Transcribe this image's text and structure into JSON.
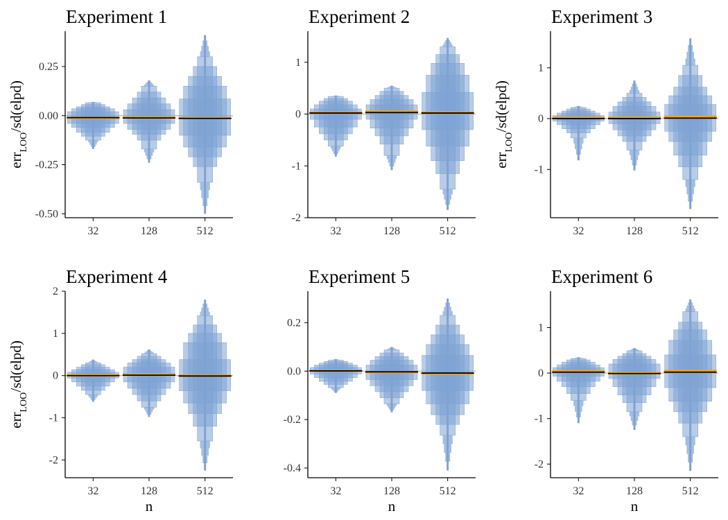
{
  "chart_data": [
    {
      "type": "letter-value plot",
      "title": "Experiment 1",
      "categories": [
        "32",
        "128",
        "512"
      ],
      "yticks": [
        "0.25",
        "0.00",
        "-0.25",
        "-0.50"
      ],
      "ytick_values": [
        0.25,
        0.0,
        -0.25,
        -0.5
      ],
      "ylim": [
        -0.52,
        0.43
      ],
      "ylabel": "err_LOO/sd(elpd)",
      "xlabel": "",
      "mean": [
        -0.012,
        -0.01,
        -0.012
      ],
      "median": [
        -0.01,
        -0.012,
        -0.014
      ],
      "min": [
        -0.17,
        -0.24,
        -0.5
      ],
      "max": [
        0.07,
        0.18,
        0.41
      ],
      "boxes": [
        [
          [
            -0.04,
            0.02
          ],
          [
            -0.06,
            0.035
          ],
          [
            -0.085,
            0.045
          ],
          [
            -0.105,
            0.057
          ],
          [
            -0.125,
            0.066
          ]
        ],
        [
          [
            -0.04,
            0.03
          ],
          [
            -0.07,
            0.06
          ],
          [
            -0.095,
            0.09
          ],
          [
            -0.125,
            0.12
          ],
          [
            -0.17,
            0.15
          ]
        ],
        [
          [
            -0.1,
            0.085
          ],
          [
            -0.16,
            0.15
          ],
          [
            -0.21,
            0.2
          ],
          [
            -0.26,
            0.25
          ],
          [
            -0.34,
            0.3
          ]
        ]
      ]
    },
    {
      "type": "letter-value plot",
      "title": "Experiment 2",
      "categories": [
        "32",
        "128",
        "512"
      ],
      "yticks": [
        "1",
        "0",
        "-1",
        "-2"
      ],
      "ytick_values": [
        1,
        0,
        -1,
        -2
      ],
      "ylim": [
        -2.0,
        1.6
      ],
      "ylabel": "",
      "xlabel": "",
      "mean": [
        0.03,
        0.05,
        0.03
      ],
      "median": [
        0.02,
        0.03,
        0.02
      ],
      "min": [
        -0.82,
        -1.08,
        -1.85
      ],
      "max": [
        0.36,
        0.55,
        1.47
      ],
      "boxes": [
        [
          [
            -0.1,
            0.1
          ],
          [
            -0.25,
            0.18
          ],
          [
            -0.38,
            0.25
          ],
          [
            -0.5,
            0.3
          ],
          [
            -0.62,
            0.34
          ]
        ],
        [
          [
            -0.1,
            0.18
          ],
          [
            -0.27,
            0.28
          ],
          [
            -0.42,
            0.36
          ],
          [
            -0.58,
            0.44
          ],
          [
            -0.8,
            0.5
          ]
        ],
        [
          [
            -0.3,
            0.42
          ],
          [
            -0.62,
            0.75
          ],
          [
            -0.9,
            0.98
          ],
          [
            -1.15,
            1.15
          ],
          [
            -1.45,
            1.3
          ]
        ]
      ]
    },
    {
      "type": "letter-value plot",
      "title": "Experiment 3",
      "categories": [
        "32",
        "128",
        "512"
      ],
      "yticks": [
        "1",
        "0",
        "-1"
      ],
      "ytick_values": [
        1,
        0,
        -1
      ],
      "ylim": [
        -1.95,
        1.72
      ],
      "ylabel": "err_LOO/sd(elpd)",
      "xlabel": "",
      "mean": [
        0.02,
        0.02,
        0.04
      ],
      "median": [
        0.0,
        0.0,
        0.01
      ],
      "min": [
        -0.82,
        -1.02,
        -1.78
      ],
      "max": [
        0.25,
        0.75,
        1.58
      ],
      "boxes": [
        [
          [
            -0.05,
            0.06
          ],
          [
            -0.12,
            0.11
          ],
          [
            -0.2,
            0.15
          ],
          [
            -0.28,
            0.19
          ],
          [
            -0.38,
            0.22
          ]
        ],
        [
          [
            -0.1,
            0.13
          ],
          [
            -0.22,
            0.24
          ],
          [
            -0.34,
            0.33
          ],
          [
            -0.45,
            0.42
          ],
          [
            -0.62,
            0.5
          ]
        ],
        [
          [
            -0.25,
            0.28
          ],
          [
            -0.45,
            0.45
          ],
          [
            -0.72,
            0.62
          ],
          [
            -0.95,
            0.85
          ],
          [
            -1.2,
            1.05
          ]
        ]
      ]
    },
    {
      "type": "letter-value plot",
      "title": "Experiment 4",
      "categories": [
        "32",
        "128",
        "512"
      ],
      "yticks": [
        "2",
        "1",
        "0",
        "-1",
        "-2"
      ],
      "ytick_values": [
        2,
        1,
        0,
        -1,
        -2
      ],
      "ylim": [
        -2.42,
        2.0
      ],
      "ylabel": "err_LOO/sd(elpd)",
      "xlabel": "n",
      "mean": [
        0.01,
        0.03,
        0.0
      ],
      "median": [
        0.0,
        0.01,
        -0.01
      ],
      "min": [
        -0.62,
        -0.98,
        -2.25
      ],
      "max": [
        0.38,
        0.62,
        1.8
      ],
      "boxes": [
        [
          [
            -0.06,
            0.08
          ],
          [
            -0.15,
            0.14
          ],
          [
            -0.25,
            0.2
          ],
          [
            -0.35,
            0.26
          ],
          [
            -0.45,
            0.3
          ]
        ],
        [
          [
            -0.15,
            0.2
          ],
          [
            -0.3,
            0.3
          ],
          [
            -0.45,
            0.38
          ],
          [
            -0.6,
            0.46
          ],
          [
            -0.75,
            0.52
          ]
        ],
        [
          [
            -0.36,
            0.38
          ],
          [
            -0.65,
            0.78
          ],
          [
            -0.9,
            1.0
          ],
          [
            -1.2,
            1.2
          ],
          [
            -1.55,
            1.42
          ]
        ]
      ]
    },
    {
      "type": "letter-value plot",
      "title": "Experiment 5",
      "categories": [
        "32",
        "128",
        "512"
      ],
      "yticks": [
        "0.2",
        "0.0",
        "-0.2",
        "-0.4"
      ],
      "ytick_values": [
        0.2,
        0.0,
        -0.2,
        -0.4
      ],
      "ylim": [
        -0.44,
        0.33
      ],
      "ylabel": "",
      "xlabel": "n",
      "mean": [
        0.002,
        -0.004,
        -0.01
      ],
      "median": [
        0.001,
        -0.003,
        -0.008
      ],
      "min": [
        -0.09,
        -0.17,
        -0.41
      ],
      "max": [
        0.05,
        0.1,
        0.3
      ],
      "boxes": [
        [
          [
            -0.012,
            0.015
          ],
          [
            -0.027,
            0.025
          ],
          [
            -0.042,
            0.033
          ],
          [
            -0.055,
            0.04
          ],
          [
            -0.068,
            0.045
          ]
        ],
        [
          [
            -0.035,
            0.025
          ],
          [
            -0.06,
            0.045
          ],
          [
            -0.085,
            0.06
          ],
          [
            -0.11,
            0.075
          ],
          [
            -0.135,
            0.088
          ]
        ],
        [
          [
            -0.08,
            0.065
          ],
          [
            -0.135,
            0.11
          ],
          [
            -0.18,
            0.15
          ],
          [
            -0.22,
            0.19
          ],
          [
            -0.265,
            0.23
          ]
        ]
      ]
    },
    {
      "type": "letter-value plot",
      "title": "Experiment 6",
      "categories": [
        "32",
        "128",
        "512"
      ],
      "yticks": [
        "1",
        "0",
        "-1",
        "-2"
      ],
      "ytick_values": [
        1,
        0,
        -1,
        -2
      ],
      "ylim": [
        -2.3,
        1.8
      ],
      "ylabel": "",
      "xlabel": "n",
      "mean": [
        0.04,
        0.0,
        0.05
      ],
      "median": [
        0.02,
        -0.01,
        0.02
      ],
      "min": [
        -1.1,
        -1.25,
        -2.15
      ],
      "max": [
        0.35,
        0.55,
        1.62
      ],
      "boxes": [
        [
          [
            -0.07,
            0.12
          ],
          [
            -0.18,
            0.18
          ],
          [
            -0.3,
            0.24
          ],
          [
            -0.45,
            0.29
          ],
          [
            -0.6,
            0.32
          ]
        ],
        [
          [
            -0.12,
            0.2
          ],
          [
            -0.3,
            0.3
          ],
          [
            -0.48,
            0.37
          ],
          [
            -0.65,
            0.43
          ],
          [
            -0.85,
            0.49
          ]
        ],
        [
          [
            -0.32,
            0.4
          ],
          [
            -0.62,
            0.72
          ],
          [
            -0.85,
            0.95
          ],
          [
            -1.1,
            1.12
          ],
          [
            -1.4,
            1.35
          ]
        ]
      ]
    }
  ],
  "colors": {
    "box_fill": "#7ea2d3",
    "mean_line": "#f5a11c",
    "median_line": "#000000",
    "zero_line": "#b8b8b8",
    "axis": "#000000"
  }
}
